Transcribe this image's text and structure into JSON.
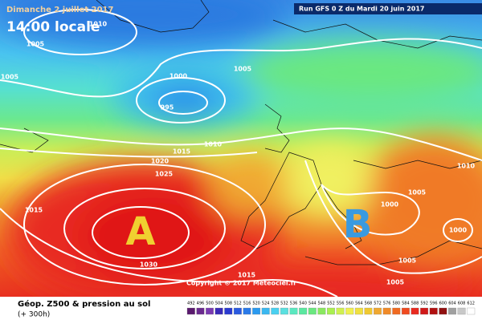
{
  "header": {
    "date": "Dimanche 2 juillet 2017",
    "time": "14:00 locale",
    "run": "Run GFS 0 Z du Mardi 20 juin 2017"
  },
  "copyright": "Copyright © 2017 Meteociel.fr",
  "pressure_centers": [
    {
      "label": "A"
    },
    {
      "label": "B"
    }
  ],
  "isobars": [
    {
      "label": "1010"
    },
    {
      "label": "1005"
    },
    {
      "label": "1005"
    },
    {
      "label": "1000"
    },
    {
      "label": "995"
    },
    {
      "label": "1005"
    },
    {
      "label": "1010"
    },
    {
      "label": "1015"
    },
    {
      "label": "1020"
    },
    {
      "label": "1025"
    },
    {
      "label": "1015"
    },
    {
      "label": "1030"
    },
    {
      "label": "1015"
    },
    {
      "label": "1000"
    },
    {
      "label": "1005"
    },
    {
      "label": "1000"
    },
    {
      "label": "1005"
    },
    {
      "label": "1005"
    },
    {
      "label": "1010"
    }
  ],
  "footer": {
    "title": "Géop. Z500 & pression au sol",
    "lead": "(+ 300h)"
  },
  "colorbar": {
    "ticks": [
      492,
      496,
      500,
      504,
      508,
      512,
      516,
      520,
      524,
      528,
      532,
      536,
      540,
      544,
      548,
      552,
      556,
      560,
      564,
      568,
      572,
      576,
      580,
      584,
      588,
      592,
      596,
      600,
      604,
      608,
      612
    ],
    "colors": [
      "#5a1a6e",
      "#6a2a8e",
      "#7a3ab0",
      "#3a2ab8",
      "#2a3ad0",
      "#2a5ae0",
      "#2a7ae8",
      "#2a9af0",
      "#3ab8f0",
      "#4ad0f0",
      "#5ae0e0",
      "#5ae8c0",
      "#5ae8a0",
      "#6ae880",
      "#8ae860",
      "#aaf050",
      "#d0f050",
      "#f0f050",
      "#f0e040",
      "#f0c830",
      "#f0a830",
      "#f08a28",
      "#f06a20",
      "#f04a20",
      "#e82a20",
      "#d01818",
      "#b01010",
      "#901010",
      "#a0a0a0",
      "#c8c8c8",
      "#ffffff"
    ]
  }
}
